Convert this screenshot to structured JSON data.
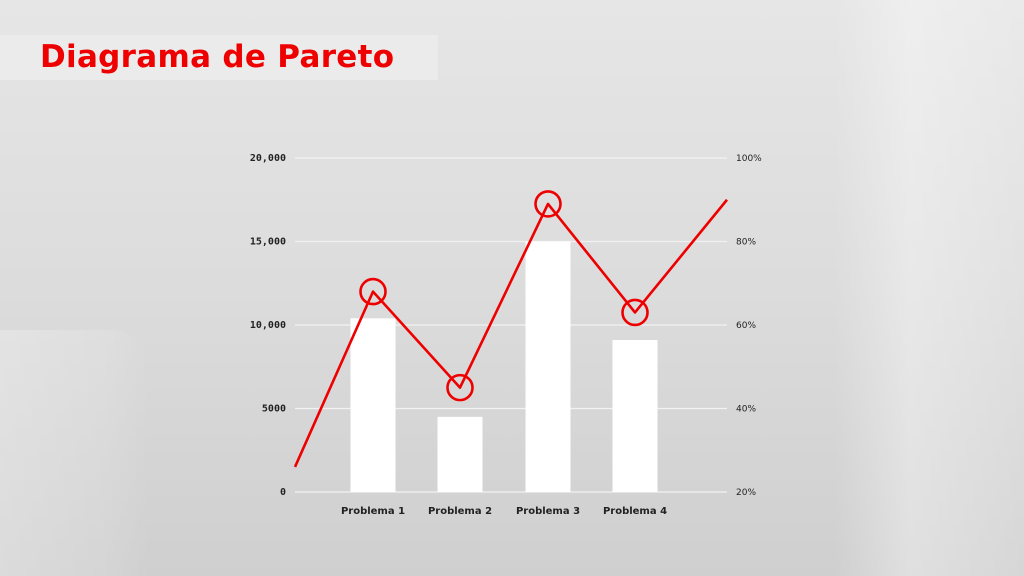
{
  "title": "Diagrama de Pareto",
  "chart_data": {
    "type": "bar",
    "title": "Diagrama de Pareto",
    "categories": [
      "Problema 1",
      "Problema 2",
      "Problema 3",
      "Problema 4"
    ],
    "bars": {
      "values": [
        10400,
        4500,
        15000,
        9100
      ],
      "ylim": [
        0,
        20000
      ],
      "ticks": [
        {
          "v": 0,
          "label": "0"
        },
        {
          "v": 5000,
          "label": "5000"
        },
        {
          "v": 10000,
          "label": "10,000"
        },
        {
          "v": 15000,
          "label": "15,000"
        },
        {
          "v": 20000,
          "label": "20,000"
        }
      ]
    },
    "line": {
      "start_value": 26,
      "values": [
        68,
        45,
        89,
        63
      ],
      "end_value": 90,
      "ylim": [
        20,
        100
      ],
      "ticks": [
        {
          "v": 20,
          "label": "20%"
        },
        {
          "v": 40,
          "label": "40%"
        },
        {
          "v": 60,
          "label": "60%"
        },
        {
          "v": 80,
          "label": "80%"
        },
        {
          "v": 100,
          "label": "100%"
        }
      ]
    },
    "grid": true,
    "colors": {
      "bar": "#ffffff",
      "line": "#ee0000",
      "grid": "#f2f2f2"
    }
  }
}
